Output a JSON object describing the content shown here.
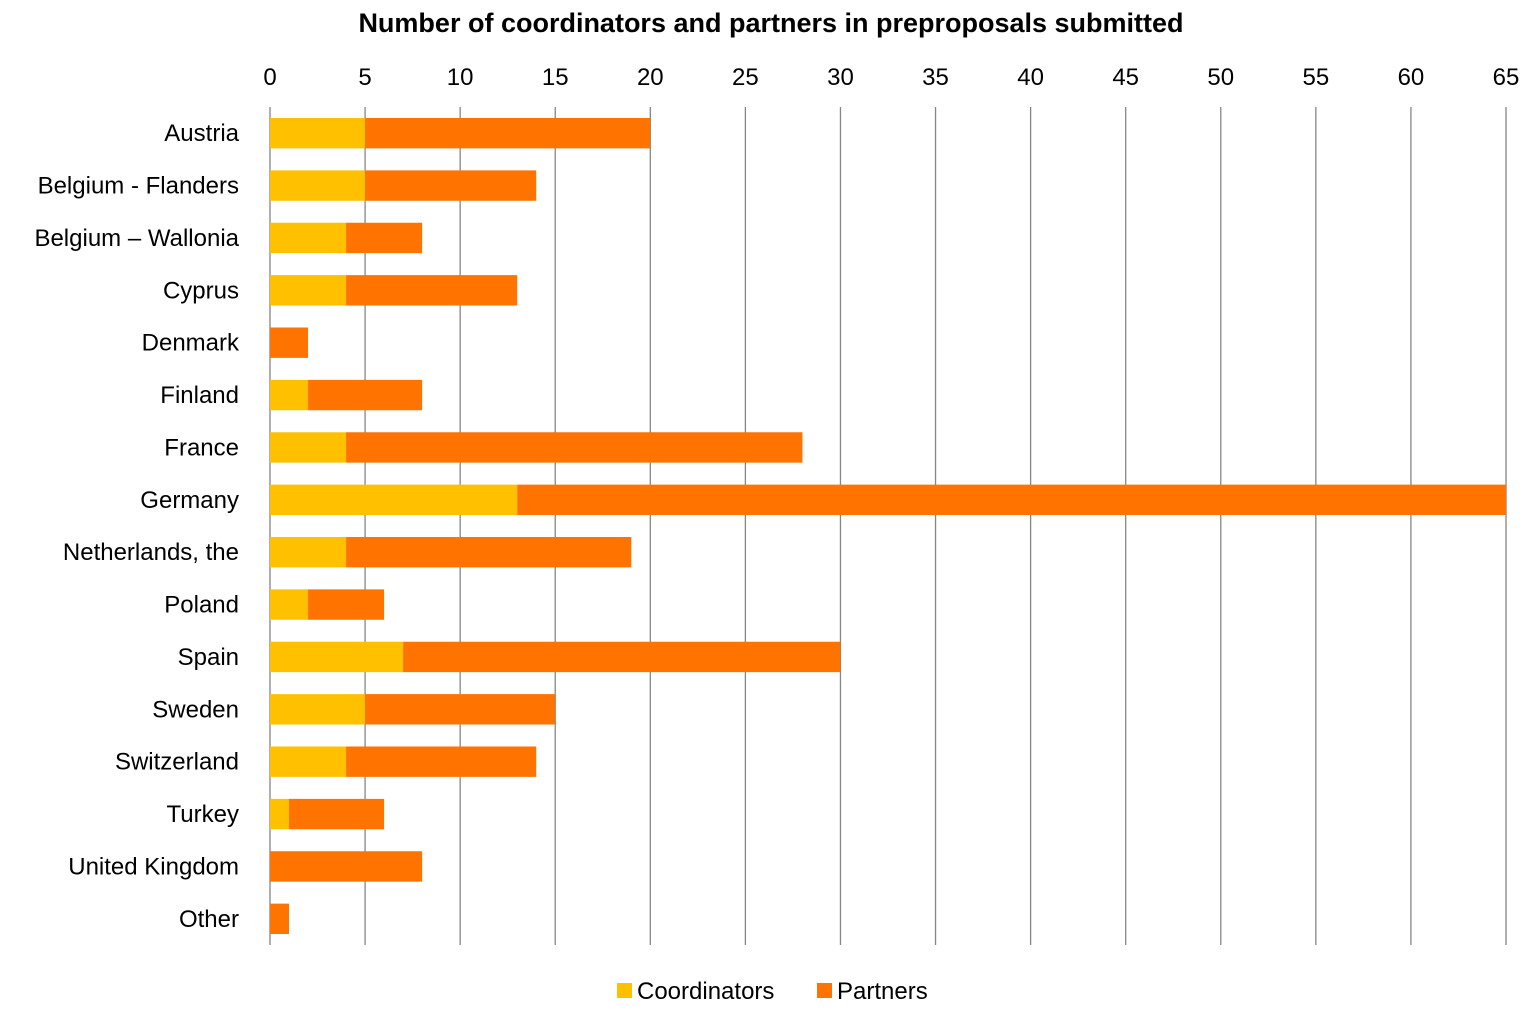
{
  "chart_data": {
    "type": "bar",
    "orientation": "horizontal",
    "stacked": true,
    "title": "Number of coordinators and partners in preproposals submitted",
    "xlabel": "",
    "ylabel": "",
    "xlim": [
      0,
      65
    ],
    "x_ticks": [
      "0",
      "5",
      "10",
      "15",
      "20",
      "25",
      "30",
      "35",
      "40",
      "45",
      "50",
      "55",
      "60",
      "65"
    ],
    "x_axis_position": "top",
    "grid": "vertical",
    "legend": "bottom",
    "categories": [
      "Austria",
      "Belgium - Flanders",
      "Belgium – Wallonia",
      "Cyprus",
      "Denmark",
      "Finland",
      "France",
      "Germany",
      "Netherlands, the",
      "Poland",
      "Spain",
      "Sweden",
      "Switzerland",
      "Turkey",
      "United Kingdom",
      "Other"
    ],
    "series": [
      {
        "name": "Coordinators",
        "color": "#FFC000",
        "values": [
          5,
          5,
          4,
          4,
          0,
          2,
          4,
          13,
          4,
          2,
          7,
          5,
          4,
          1,
          0,
          0
        ]
      },
      {
        "name": "Partners",
        "color": "#FF7300",
        "values": [
          15,
          9,
          4,
          9,
          2,
          6,
          24,
          52,
          15,
          4,
          23,
          10,
          10,
          5,
          8,
          1
        ]
      }
    ],
    "grid_color": "#868686"
  }
}
